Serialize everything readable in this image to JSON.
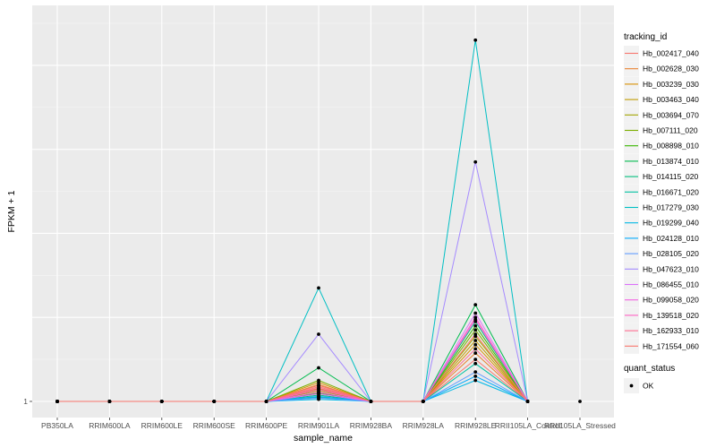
{
  "chart_data": {
    "type": "line",
    "xlabel": "sample_name",
    "ylabel": "FPKM + 1",
    "y_ticks": [
      1
    ],
    "y_tick_labels": [
      "1"
    ],
    "grid": true,
    "legend_position": "right",
    "categories": [
      "PB350LA",
      "RRIM600LA",
      "RRIM600LE",
      "RRIM600SE",
      "RRIM600PE",
      "RRIM901LA",
      "RRIM928BA",
      "RRIM928LA",
      "RRIM928LE",
      "RRII105LA_Control",
      "RRII105LA_Stressed"
    ],
    "legend_title": "tracking_id",
    "quant_title": "quant_status",
    "quant_label": "OK",
    "series": [
      {
        "name": "Hb_002417_040",
        "color": "#F8766D",
        "values": [
          1,
          1,
          1,
          1,
          1,
          1.35,
          1,
          1,
          2.0,
          1,
          null
        ]
      },
      {
        "name": "Hb_002628_030",
        "color": "#EA8331",
        "values": [
          1,
          1,
          1,
          1,
          1,
          1.4,
          1,
          1,
          2.15,
          1,
          null
        ]
      },
      {
        "name": "Hb_003239_030",
        "color": "#D89000",
        "values": [
          1,
          1,
          1,
          1,
          1,
          1.45,
          1,
          1,
          2.35,
          1,
          null
        ]
      },
      {
        "name": "Hb_003463_040",
        "color": "#C09B00",
        "values": [
          1,
          1,
          1,
          1,
          1,
          1.3,
          1,
          1,
          2.45,
          1,
          null
        ]
      },
      {
        "name": "Hb_003694_070",
        "color": "#A3A500",
        "values": [
          1,
          1,
          1,
          1,
          1,
          1.25,
          1,
          1,
          2.55,
          1,
          null
        ]
      },
      {
        "name": "Hb_007111_020",
        "color": "#7CAE00",
        "values": [
          1,
          1,
          1,
          1,
          1,
          1.5,
          1,
          1,
          2.7,
          1,
          null
        ]
      },
      {
        "name": "Hb_008898_010",
        "color": "#39B600",
        "values": [
          1,
          1,
          1,
          1,
          1,
          1.2,
          1,
          1,
          2.8,
          1,
          null
        ]
      },
      {
        "name": "Hb_013874_010",
        "color": "#00BB4E",
        "values": [
          1,
          1,
          1,
          1,
          1,
          1.8,
          1,
          1,
          3.3,
          1,
          null
        ]
      },
      {
        "name": "Hb_014115_020",
        "color": "#00BF7D",
        "values": [
          1,
          1,
          1,
          1,
          1,
          1.15,
          1,
          1,
          2.9,
          1,
          null
        ]
      },
      {
        "name": "Hb_016671_020",
        "color": "#00C1A3",
        "values": [
          1,
          1,
          1,
          1,
          1,
          1.1,
          1,
          1,
          1.9,
          1,
          null
        ]
      },
      {
        "name": "Hb_017279_030",
        "color": "#00BFC4",
        "values": [
          1,
          1,
          1,
          1,
          1,
          3.7,
          1,
          1,
          9.6,
          1,
          null
        ]
      },
      {
        "name": "Hb_019299_040",
        "color": "#00B8E5",
        "values": [
          1,
          1,
          1,
          1,
          1,
          1.05,
          1,
          1,
          1.5,
          1,
          null
        ]
      },
      {
        "name": "Hb_024128_010",
        "color": "#00ABFD",
        "values": [
          1,
          1,
          1,
          1,
          1,
          1.12,
          1,
          1,
          1.6,
          1,
          null
        ]
      },
      {
        "name": "Hb_028105_020",
        "color": "#619CFF",
        "values": [
          1,
          1,
          1,
          1,
          1,
          1.08,
          1,
          1,
          1.7,
          1,
          null
        ]
      },
      {
        "name": "Hb_047623_010",
        "color": "#A58AFF",
        "values": [
          1,
          1,
          1,
          1,
          1,
          2.6,
          1,
          1,
          6.7,
          1,
          null
        ]
      },
      {
        "name": "Hb_086455_010",
        "color": "#DB72FB",
        "values": [
          1,
          1,
          1,
          1,
          1,
          1.18,
          1,
          1,
          3.1,
          1,
          null
        ]
      },
      {
        "name": "Hb_099058_020",
        "color": "#F564E3",
        "values": [
          1,
          1,
          1,
          1,
          1,
          1.22,
          1,
          1,
          2.95,
          1,
          null
        ]
      },
      {
        "name": "Hb_139518_020",
        "color": "#FF61C3",
        "values": [
          1,
          1,
          1,
          1,
          1,
          1.28,
          1,
          1,
          3.0,
          1,
          null
        ]
      },
      {
        "name": "Hb_162933_010",
        "color": "#FF6C91",
        "values": [
          1,
          1,
          1,
          1,
          1,
          1.32,
          1,
          1,
          2.25,
          1,
          null
        ]
      },
      {
        "name": "Hb_171554_060",
        "color": "#F8766D",
        "values": [
          1,
          1,
          1,
          1,
          1,
          1.38,
          1,
          1,
          2.6,
          1,
          null
        ]
      }
    ],
    "ok_points": [
      1,
      1,
      1,
      1,
      1,
      null,
      1,
      1,
      null,
      1,
      1
    ]
  }
}
